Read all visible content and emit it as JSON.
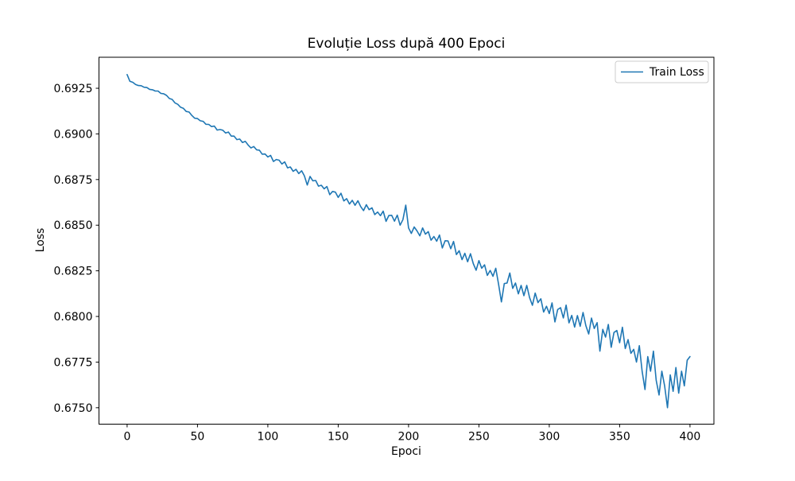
{
  "title": "Evoluție Loss după 400 Epoci",
  "axes": {
    "xlabel": "Epoci",
    "ylabel": "Loss"
  },
  "legend": {
    "position": "upper right",
    "items": [
      {
        "label": "Train Loss",
        "color": "#1f77b4"
      }
    ]
  },
  "chart_data": {
    "type": "line",
    "title": "Evoluție Loss după 400 Epoci",
    "xlabel": "Epoci",
    "ylabel": "Loss",
    "grid": false,
    "legend_position": "upper right",
    "xlim": [
      -20,
      417
    ],
    "ylim": [
      0.6741,
      0.6942
    ],
    "xticks": [
      0,
      50,
      100,
      150,
      200,
      250,
      300,
      350,
      400
    ],
    "xtick_labels": [
      "0",
      "50",
      "100",
      "150",
      "200",
      "250",
      "300",
      "350",
      "400"
    ],
    "yticks": [
      0.675,
      0.6775,
      0.68,
      0.6825,
      0.685,
      0.6875,
      0.69,
      0.6925
    ],
    "ytick_labels": [
      "0.6750",
      "0.6775",
      "0.6800",
      "0.6825",
      "0.6850",
      "0.6875",
      "0.6900",
      "0.6925"
    ],
    "series": [
      {
        "name": "Train Loss",
        "color": "#1f77b4",
        "x_start": 0,
        "x_step": 2,
        "values": [
          0.69325,
          0.69288,
          0.69283,
          0.69271,
          0.69265,
          0.69264,
          0.69256,
          0.69254,
          0.69244,
          0.69242,
          0.69235,
          0.69235,
          0.69222,
          0.6922,
          0.69211,
          0.69194,
          0.69189,
          0.6917,
          0.69162,
          0.69146,
          0.6914,
          0.69123,
          0.6912,
          0.69101,
          0.69086,
          0.69084,
          0.69072,
          0.69069,
          0.69053,
          0.69052,
          0.6904,
          0.69043,
          0.69021,
          0.69024,
          0.6902,
          0.69005,
          0.6901,
          0.68988,
          0.68988,
          0.68969,
          0.68972,
          0.68953,
          0.68959,
          0.68939,
          0.68923,
          0.68931,
          0.68913,
          0.68911,
          0.68889,
          0.6889,
          0.68874,
          0.68882,
          0.68849,
          0.6886,
          0.68856,
          0.68835,
          0.68847,
          0.68814,
          0.68819,
          0.68795,
          0.68806,
          0.68783,
          0.68798,
          0.6877,
          0.6872,
          0.68767,
          0.68743,
          0.68745,
          0.68714,
          0.68719,
          0.68699,
          0.68712,
          0.68667,
          0.68685,
          0.68681,
          0.68652,
          0.68675,
          0.68633,
          0.68645,
          0.68616,
          0.68636,
          0.68609,
          0.68634,
          0.68602,
          0.6858,
          0.68612,
          0.68585,
          0.68595,
          0.68558,
          0.68572,
          0.68552,
          0.68577,
          0.68521,
          0.68553,
          0.68554,
          0.68522,
          0.68555,
          0.685,
          0.6853,
          0.6861,
          0.68485,
          0.68455,
          0.6849,
          0.68469,
          0.68442,
          0.68485,
          0.68451,
          0.68465,
          0.68418,
          0.68438,
          0.68412,
          0.68446,
          0.68375,
          0.68415,
          0.68414,
          0.68371,
          0.68411,
          0.68339,
          0.6836,
          0.68311,
          0.68346,
          0.683,
          0.68344,
          0.6829,
          0.68253,
          0.68306,
          0.68264,
          0.68283,
          0.68225,
          0.68252,
          0.6822,
          0.68264,
          0.68175,
          0.6808,
          0.6818,
          0.68183,
          0.68238,
          0.68154,
          0.68183,
          0.68124,
          0.6817,
          0.68114,
          0.6817,
          0.68104,
          0.68061,
          0.68128,
          0.68076,
          0.68097,
          0.68024,
          0.68056,
          0.68016,
          0.68074,
          0.6797,
          0.68038,
          0.68048,
          0.67992,
          0.68062,
          0.67965,
          0.68006,
          0.67942,
          0.68005,
          0.67946,
          0.68022,
          0.6795,
          0.67904,
          0.67991,
          0.67934,
          0.67966,
          0.6781,
          0.67929,
          0.67887,
          0.67956,
          0.67831,
          0.67912,
          0.67923,
          0.67856,
          0.67941,
          0.67824,
          0.67873,
          0.67798,
          0.6782,
          0.6775,
          0.6784,
          0.677,
          0.676,
          0.6778,
          0.677,
          0.6781,
          0.6765,
          0.6757,
          0.677,
          0.6762,
          0.675,
          0.6768,
          0.6759,
          0.6772,
          0.6758,
          0.677,
          0.6762,
          0.6776,
          0.6778
        ]
      }
    ]
  }
}
